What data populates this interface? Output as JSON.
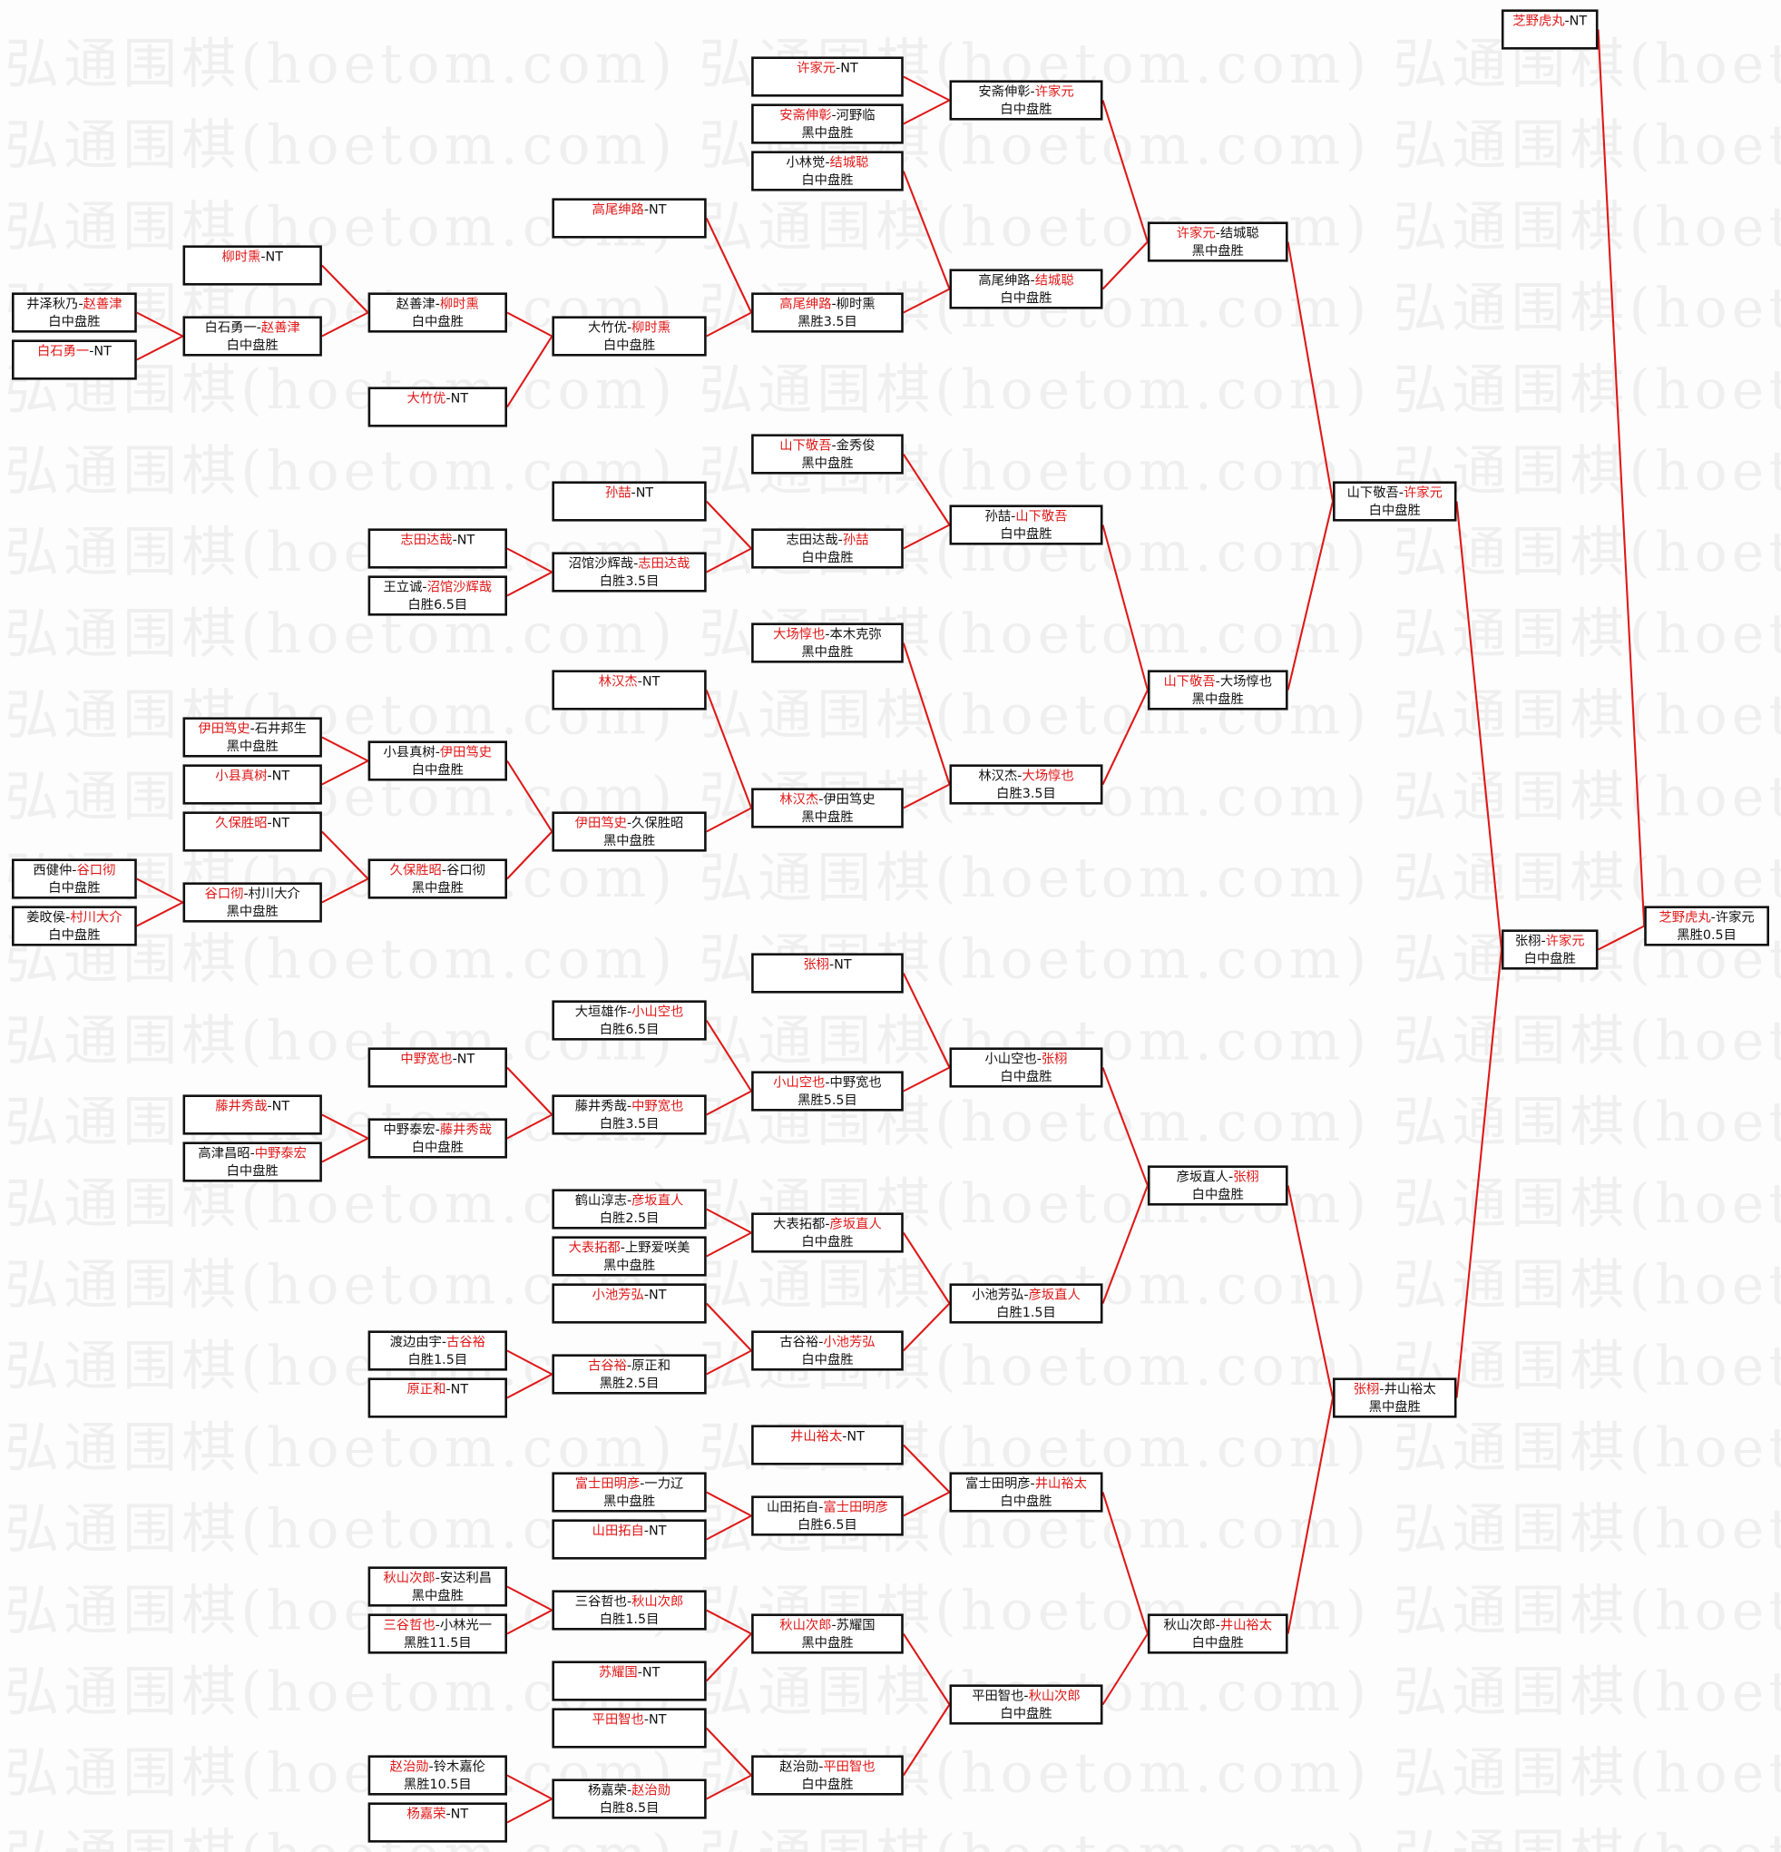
{
  "watermark": "弘通围棋(hoetom.com)",
  "colors": {
    "winner": "#e01818",
    "connector": "#e01818",
    "border": "#111111"
  },
  "matches": [
    {
      "p1": "井泽秋乃",
      "p2": "赵善津",
      "winner": 2,
      "result": "白中盘胜"
    },
    {
      "p1": "白石勇一",
      "p2": "NT",
      "winner": 1,
      "result": ""
    },
    {
      "p1": "西健仲",
      "p2": "谷口彻",
      "winner": 2,
      "result": "白中盘胜"
    },
    {
      "p1": "姜旼侯",
      "p2": "村川大介",
      "winner": 2,
      "result": "白中盘胜"
    },
    {
      "p1": "柳时熏",
      "p2": "NT",
      "winner": 1,
      "result": ""
    },
    {
      "p1": "白石勇一",
      "p2": "赵善津",
      "winner": 2,
      "result": "白中盘胜"
    },
    {
      "p1": "伊田笃史",
      "p2": "石井邦生",
      "winner": 1,
      "result": "黑中盘胜"
    },
    {
      "p1": "小县真树",
      "p2": "NT",
      "winner": 1,
      "result": ""
    },
    {
      "p1": "久保胜昭",
      "p2": "NT",
      "winner": 1,
      "result": ""
    },
    {
      "p1": "谷口彻",
      "p2": "村川大介",
      "winner": 1,
      "result": "黑中盘胜"
    },
    {
      "p1": "藤井秀哉",
      "p2": "NT",
      "winner": 1,
      "result": ""
    },
    {
      "p1": "高津昌昭",
      "p2": "中野泰宏",
      "winner": 2,
      "result": "白中盘胜"
    },
    {
      "p1": "赵善津",
      "p2": "柳时熏",
      "winner": 2,
      "result": "白中盘胜"
    },
    {
      "p1": "大竹优",
      "p2": "NT",
      "winner": 1,
      "result": ""
    },
    {
      "p1": "志田达哉",
      "p2": "NT",
      "winner": 1,
      "result": ""
    },
    {
      "p1": "王立诚",
      "p2": "沼馆沙辉哉",
      "winner": 2,
      "result": "白胜6.5目"
    },
    {
      "p1": "小县真树",
      "p2": "伊田笃史",
      "winner": 2,
      "result": "白中盘胜"
    },
    {
      "p1": "久保胜昭",
      "p2": "谷口彻",
      "winner": 1,
      "result": "黑中盘胜"
    },
    {
      "p1": "中野宽也",
      "p2": "NT",
      "winner": 1,
      "result": ""
    },
    {
      "p1": "中野泰宏",
      "p2": "藤井秀哉",
      "winner": 2,
      "result": "白中盘胜"
    },
    {
      "p1": "渡边由宇",
      "p2": "古谷裕",
      "winner": 2,
      "result": "白胜1.5目"
    },
    {
      "p1": "原正和",
      "p2": "NT",
      "winner": 1,
      "result": ""
    },
    {
      "p1": "秋山次郎",
      "p2": "安达利昌",
      "winner": 1,
      "result": "黑中盘胜"
    },
    {
      "p1": "三谷哲也",
      "p2": "小林光一",
      "winner": 1,
      "result": "黑胜11.5目"
    },
    {
      "p1": "赵治勋",
      "p2": "铃木嘉伦",
      "winner": 1,
      "result": "黑胜10.5目"
    },
    {
      "p1": "杨嘉荣",
      "p2": "NT",
      "winner": 1,
      "result": ""
    },
    {
      "p1": "高尾绅路",
      "p2": "NT",
      "winner": 1,
      "result": ""
    },
    {
      "p1": "大竹优",
      "p2": "柳时熏",
      "winner": 2,
      "result": "白中盘胜"
    },
    {
      "p1": "孙喆",
      "p2": "NT",
      "winner": 1,
      "result": ""
    },
    {
      "p1": "沼馆沙辉哉",
      "p2": "志田达哉",
      "winner": 2,
      "result": "白胜3.5目"
    },
    {
      "p1": "林汉杰",
      "p2": "NT",
      "winner": 1,
      "result": ""
    },
    {
      "p1": "伊田笃史",
      "p2": "久保胜昭",
      "winner": 1,
      "result": "黑中盘胜"
    },
    {
      "p1": "大垣雄作",
      "p2": "小山空也",
      "winner": 2,
      "result": "白胜6.5目"
    },
    {
      "p1": "藤井秀哉",
      "p2": "中野宽也",
      "winner": 2,
      "result": "白胜3.5目"
    },
    {
      "p1": "鹤山淳志",
      "p2": "彦坂直人",
      "winner": 2,
      "result": "白胜2.5目"
    },
    {
      "p1": "大表拓都",
      "p2": "上野爱咲美",
      "winner": 1,
      "result": "黑中盘胜"
    },
    {
      "p1": "小池芳弘",
      "p2": "NT",
      "winner": 1,
      "result": ""
    },
    {
      "p1": "古谷裕",
      "p2": "原正和",
      "winner": 1,
      "result": "黑胜2.5目"
    },
    {
      "p1": "富士田明彦",
      "p2": "一力辽",
      "winner": 1,
      "result": "黑中盘胜"
    },
    {
      "p1": "山田拓自",
      "p2": "NT",
      "winner": 1,
      "result": ""
    },
    {
      "p1": "三谷哲也",
      "p2": "秋山次郎",
      "winner": 2,
      "result": "白胜1.5目"
    },
    {
      "p1": "苏耀国",
      "p2": "NT",
      "winner": 1,
      "result": ""
    },
    {
      "p1": "平田智也",
      "p2": "NT",
      "winner": 1,
      "result": ""
    },
    {
      "p1": "杨嘉荣",
      "p2": "赵治勋",
      "winner": 2,
      "result": "白胜8.5目"
    },
    {
      "p1": "许家元",
      "p2": "NT",
      "winner": 1,
      "result": ""
    },
    {
      "p1": "安斋伸彰",
      "p2": "河野临",
      "winner": 1,
      "result": "黑中盘胜"
    },
    {
      "p1": "小林觉",
      "p2": "结城聪",
      "winner": 2,
      "result": "白中盘胜"
    },
    {
      "p1": "高尾绅路",
      "p2": "柳时熏",
      "winner": 1,
      "result": "黑胜3.5目"
    },
    {
      "p1": "山下敬吾",
      "p2": "金秀俊",
      "winner": 1,
      "result": "黑中盘胜"
    },
    {
      "p1": "志田达哉",
      "p2": "孙喆",
      "winner": 2,
      "result": "白中盘胜"
    },
    {
      "p1": "大场惇也",
      "p2": "本木克弥",
      "winner": 1,
      "result": "黑中盘胜"
    },
    {
      "p1": "林汉杰",
      "p2": "伊田笃史",
      "winner": 1,
      "result": "黑中盘胜"
    },
    {
      "p1": "张栩",
      "p2": "NT",
      "winner": 1,
      "result": ""
    },
    {
      "p1": "小山空也",
      "p2": "中野宽也",
      "winner": 1,
      "result": "黑胜5.5目"
    },
    {
      "p1": "大表拓都",
      "p2": "彦坂直人",
      "winner": 2,
      "result": "白中盘胜"
    },
    {
      "p1": "古谷裕",
      "p2": "小池芳弘",
      "winner": 2,
      "result": "白中盘胜"
    },
    {
      "p1": "井山裕太",
      "p2": "NT",
      "winner": 1,
      "result": ""
    },
    {
      "p1": "山田拓自",
      "p2": "富士田明彦",
      "winner": 2,
      "result": "白胜6.5目"
    },
    {
      "p1": "秋山次郎",
      "p2": "苏耀国",
      "winner": 1,
      "result": "黑中盘胜"
    },
    {
      "p1": "赵治勋",
      "p2": "平田智也",
      "winner": 2,
      "result": "白中盘胜"
    },
    {
      "p1": "安斋伸彰",
      "p2": "许家元",
      "winner": 2,
      "result": "白中盘胜"
    },
    {
      "p1": "高尾绅路",
      "p2": "结城聪",
      "winner": 2,
      "result": "白中盘胜"
    },
    {
      "p1": "孙喆",
      "p2": "山下敬吾",
      "winner": 2,
      "result": "白中盘胜"
    },
    {
      "p1": "林汉杰",
      "p2": "大场惇也",
      "winner": 2,
      "result": "白胜3.5目"
    },
    {
      "p1": "小山空也",
      "p2": "张栩",
      "winner": 2,
      "result": "白中盘胜"
    },
    {
      "p1": "小池芳弘",
      "p2": "彦坂直人",
      "winner": 2,
      "result": "白胜1.5目"
    },
    {
      "p1": "富士田明彦",
      "p2": "井山裕太",
      "winner": 2,
      "result": "白中盘胜"
    },
    {
      "p1": "平田智也",
      "p2": "秋山次郎",
      "winner": 2,
      "result": "白中盘胜"
    },
    {
      "p1": "许家元",
      "p2": "结城聪",
      "winner": 1,
      "result": "黑中盘胜"
    },
    {
      "p1": "山下敬吾",
      "p2": "大场惇也",
      "winner": 1,
      "result": "黑中盘胜"
    },
    {
      "p1": "彦坂直人",
      "p2": "张栩",
      "winner": 2,
      "result": "白中盘胜"
    },
    {
      "p1": "秋山次郎",
      "p2": "井山裕太",
      "winner": 2,
      "result": "白中盘胜"
    },
    {
      "p1": "山下敬吾",
      "p2": "许家元",
      "winner": 2,
      "result": "白中盘胜"
    },
    {
      "p1": "张栩",
      "p2": "井山裕太",
      "winner": 1,
      "result": "黑中盘胜"
    },
    {
      "p1": "芝野虎丸",
      "p2": "NT",
      "winner": 1,
      "result": ""
    },
    {
      "p1": "张栩",
      "p2": "许家元",
      "winner": 2,
      "result": "白中盘胜"
    },
    {
      "p1": "芝野虎丸",
      "p2": "许家元",
      "winner": 1,
      "result": "黑胜0.5目"
    }
  ]
}
